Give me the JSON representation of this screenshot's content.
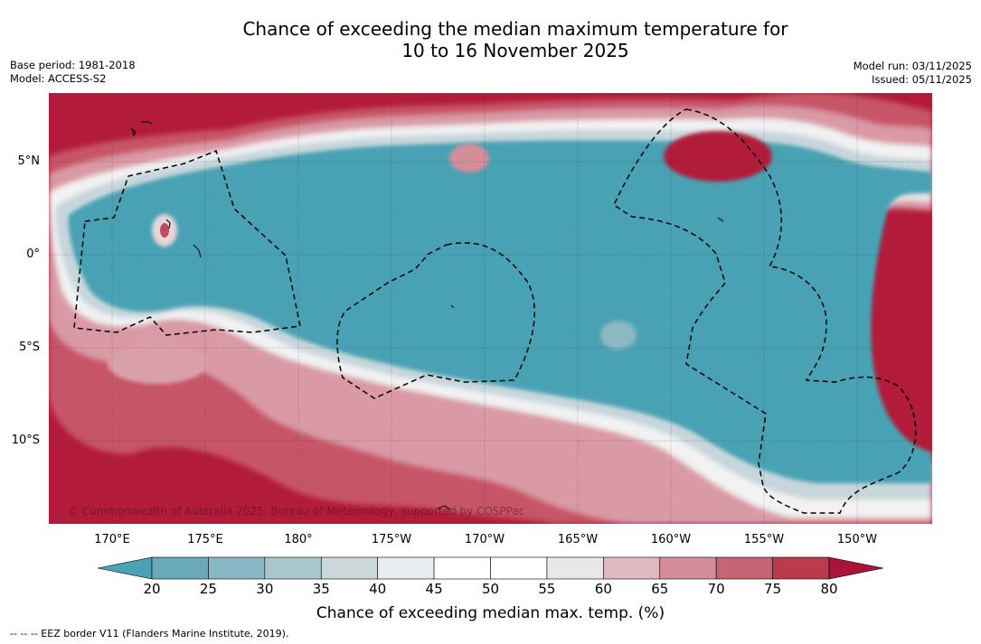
{
  "title": {
    "line1": "Chance of exceeding the median maximum temperature for",
    "line2": "10 to 16 November 2025"
  },
  "meta_left": {
    "base_period": "Base period: 1981-2018",
    "model": "Model: ACCESS-S2"
  },
  "meta_right": {
    "model_run": "Model run: 03/11/2025",
    "issued": "Issued: 05/11/2025"
  },
  "map": {
    "lat_labels": [
      "5°N",
      "0°",
      "5°S",
      "10°S"
    ],
    "lon_labels": [
      "170°E",
      "175°E",
      "180°",
      "175°W",
      "170°W",
      "165°W",
      "160°W",
      "155°W",
      "150°W"
    ],
    "copyright": "© Commonwealth of Australia 2025, Bureau of Meteorology, supported by COSPPac"
  },
  "colorbar": {
    "title": "Chance of exceeding median max. temp. (%)",
    "ticks": [
      "20",
      "25",
      "30",
      "35",
      "40",
      "45",
      "50",
      "55",
      "60",
      "65",
      "70",
      "75",
      "80"
    ],
    "colors": [
      "#4aa3b4",
      "#6aa9b8",
      "#88b8c4",
      "#a9c6cc",
      "#ccd7da",
      "#e8ecef",
      "#ffffff",
      "#ffffff",
      "#e8e8ea",
      "#e0b8c0",
      "#d48e99",
      "#c56473",
      "#bb3a4d",
      "#a8143a"
    ],
    "under_color": "#4aa3b4",
    "over_color": "#a8143a"
  },
  "legend_note": "--  --  -- EEZ border V11 (Flanders Marine Institute, 2019)."
}
